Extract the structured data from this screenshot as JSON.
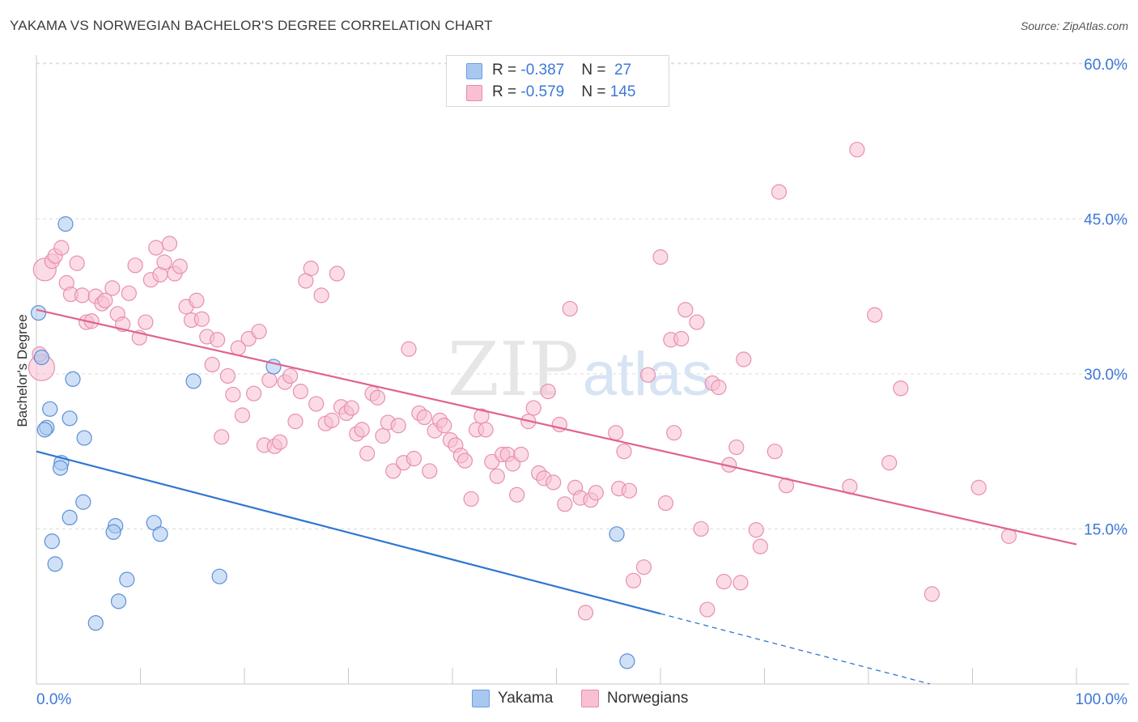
{
  "title": "YAKAMA VS NORWEGIAN BACHELOR'S DEGREE CORRELATION CHART",
  "source": "Source: ZipAtlas.com",
  "watermark": {
    "zip": "ZIP",
    "atlas": "atlas"
  },
  "legend": [
    {
      "r_label": "R = ",
      "r_value": "-0.387",
      "n_label": "N = ",
      "n_value": " 27",
      "color": "#a9c8f0",
      "stroke": "#6b9de0"
    },
    {
      "r_label": "R = ",
      "r_value": "-0.579",
      "n_label": "N = ",
      "n_value": "145",
      "color": "#f8c0d2",
      "stroke": "#e98bab"
    }
  ],
  "colors": {
    "yakama_fill": "#a9c8f0",
    "yakama_stroke": "#5b8fd8",
    "yakama_line": "#2f76d2",
    "norw_fill": "#f8c0d2",
    "norw_stroke": "#e88fae",
    "norw_line": "#e0638e",
    "tick_text": "#3c78d8"
  },
  "chart_data": {
    "type": "scatter",
    "title": "YAKAMA VS NORWEGIAN BACHELOR'S DEGREE CORRELATION CHART",
    "xlabel": "",
    "ylabel": "Bachelor's Degree",
    "xlim": [
      0,
      100
    ],
    "ylim": [
      0,
      63
    ],
    "x_tick_labels": [
      "0.0%",
      "100.0%"
    ],
    "y_ticks": [
      15,
      30,
      45,
      60
    ],
    "y_tick_labels": [
      "15.0%",
      "30.0%",
      "45.0%",
      "60.0%"
    ],
    "grid": true,
    "series": [
      {
        "name": "Yakama",
        "r": -0.387,
        "n": 27,
        "trend": {
          "x0": 0,
          "y0": 22.5,
          "x1": 60,
          "y1": 6.8,
          "dash_to_x": 100,
          "dash_to_y": -3.7
        },
        "points": [
          [
            0.2,
            35.9,
            9
          ],
          [
            0.5,
            31.6,
            9
          ],
          [
            2.8,
            44.5,
            9
          ],
          [
            1.3,
            26.6,
            9
          ],
          [
            1.0,
            24.8,
            9
          ],
          [
            0.8,
            24.6,
            9
          ],
          [
            3.5,
            29.5,
            9
          ],
          [
            3.2,
            25.7,
            9
          ],
          [
            4.6,
            23.8,
            9
          ],
          [
            2.4,
            21.4,
            9
          ],
          [
            2.3,
            20.9,
            9
          ],
          [
            4.5,
            17.6,
            9
          ],
          [
            3.2,
            16.1,
            9
          ],
          [
            7.6,
            15.3,
            9
          ],
          [
            7.4,
            14.7,
            9
          ],
          [
            11.3,
            15.6,
            9
          ],
          [
            11.9,
            14.5,
            9
          ],
          [
            1.5,
            13.8,
            9
          ],
          [
            1.8,
            11.6,
            9
          ],
          [
            8.7,
            10.1,
            9
          ],
          [
            17.6,
            10.4,
            9
          ],
          [
            7.9,
            8.0,
            9
          ],
          [
            5.7,
            5.9,
            9
          ],
          [
            15.1,
            29.3,
            9
          ],
          [
            22.8,
            30.7,
            9
          ],
          [
            55.8,
            14.5,
            9
          ],
          [
            56.8,
            2.2,
            9
          ]
        ]
      },
      {
        "name": "Norwegians",
        "r": -0.579,
        "n": 145,
        "trend": {
          "x0": 0,
          "y0": 36.2,
          "x1": 100,
          "y1": 13.5
        },
        "points": [
          [
            0.8,
            40.1,
            14
          ],
          [
            0.5,
            30.6,
            16
          ],
          [
            1.5,
            40.9,
            9
          ],
          [
            1.8,
            41.4,
            9
          ],
          [
            2.4,
            42.2,
            9
          ],
          [
            2.9,
            38.8,
            9
          ],
          [
            3.3,
            37.7,
            9
          ],
          [
            3.9,
            40.7,
            9
          ],
          [
            4.4,
            37.6,
            9
          ],
          [
            4.8,
            35.0,
            9
          ],
          [
            5.3,
            35.1,
            9
          ],
          [
            5.7,
            37.5,
            9
          ],
          [
            6.3,
            36.8,
            9
          ],
          [
            6.6,
            37.1,
            9
          ],
          [
            7.3,
            38.3,
            9
          ],
          [
            7.8,
            35.8,
            9
          ],
          [
            8.3,
            34.8,
            9
          ],
          [
            8.9,
            37.8,
            9
          ],
          [
            9.5,
            40.5,
            9
          ],
          [
            9.9,
            33.5,
            9
          ],
          [
            10.5,
            35.0,
            9
          ],
          [
            11.0,
            39.1,
            9
          ],
          [
            11.5,
            42.2,
            9
          ],
          [
            11.9,
            39.6,
            9
          ],
          [
            12.3,
            40.8,
            9
          ],
          [
            12.8,
            42.6,
            9
          ],
          [
            13.3,
            39.7,
            9
          ],
          [
            13.8,
            40.4,
            9
          ],
          [
            14.4,
            36.5,
            9
          ],
          [
            14.9,
            35.2,
            9
          ],
          [
            15.4,
            37.1,
            9
          ],
          [
            15.9,
            35.3,
            9
          ],
          [
            16.4,
            33.6,
            9
          ],
          [
            16.9,
            30.9,
            9
          ],
          [
            17.4,
            33.3,
            9
          ],
          [
            17.8,
            23.9,
            9
          ],
          [
            18.4,
            29.8,
            9
          ],
          [
            18.9,
            28.0,
            9
          ],
          [
            19.4,
            32.5,
            9
          ],
          [
            19.8,
            26.0,
            9
          ],
          [
            20.4,
            33.4,
            9
          ],
          [
            20.9,
            28.1,
            9
          ],
          [
            21.4,
            34.1,
            9
          ],
          [
            21.9,
            23.1,
            9
          ],
          [
            22.4,
            29.4,
            9
          ],
          [
            22.9,
            23.0,
            9
          ],
          [
            23.4,
            23.4,
            9
          ],
          [
            23.9,
            29.2,
            9
          ],
          [
            24.4,
            29.8,
            9
          ],
          [
            24.9,
            25.4,
            9
          ],
          [
            25.4,
            28.3,
            9
          ],
          [
            25.9,
            39.0,
            9
          ],
          [
            26.4,
            40.2,
            9
          ],
          [
            26.9,
            27.1,
            9
          ],
          [
            27.4,
            37.6,
            9
          ],
          [
            27.8,
            25.2,
            9
          ],
          [
            28.4,
            25.5,
            9
          ],
          [
            28.9,
            39.7,
            9
          ],
          [
            29.3,
            26.8,
            9
          ],
          [
            29.8,
            26.2,
            9
          ],
          [
            30.3,
            26.7,
            9
          ],
          [
            30.8,
            24.2,
            9
          ],
          [
            31.3,
            24.6,
            9
          ],
          [
            31.8,
            22.3,
            9
          ],
          [
            32.3,
            28.1,
            9
          ],
          [
            32.8,
            27.7,
            9
          ],
          [
            33.3,
            24.0,
            9
          ],
          [
            33.8,
            25.3,
            9
          ],
          [
            34.3,
            20.6,
            9
          ],
          [
            34.8,
            25.0,
            9
          ],
          [
            35.3,
            21.4,
            9
          ],
          [
            35.8,
            32.4,
            9
          ],
          [
            36.3,
            21.8,
            9
          ],
          [
            36.8,
            26.2,
            9
          ],
          [
            37.3,
            25.8,
            9
          ],
          [
            37.8,
            20.6,
            9
          ],
          [
            38.3,
            24.5,
            9
          ],
          [
            38.8,
            25.5,
            9
          ],
          [
            39.2,
            25.0,
            9
          ],
          [
            39.8,
            23.6,
            9
          ],
          [
            40.3,
            23.1,
            9
          ],
          [
            40.8,
            22.1,
            9
          ],
          [
            41.2,
            21.6,
            9
          ],
          [
            41.8,
            17.9,
            9
          ],
          [
            42.3,
            24.6,
            9
          ],
          [
            42.8,
            25.9,
            9
          ],
          [
            43.2,
            24.6,
            9
          ],
          [
            43.8,
            21.5,
            9
          ],
          [
            44.3,
            20.1,
            9
          ],
          [
            44.8,
            22.2,
            9
          ],
          [
            45.3,
            22.2,
            9
          ],
          [
            45.8,
            21.3,
            9
          ],
          [
            46.2,
            18.3,
            9
          ],
          [
            46.6,
            22.2,
            9
          ],
          [
            47.3,
            25.4,
            9
          ],
          [
            47.8,
            26.7,
            9
          ],
          [
            48.3,
            20.4,
            9
          ],
          [
            48.8,
            19.9,
            9
          ],
          [
            49.2,
            28.3,
            9
          ],
          [
            49.7,
            19.5,
            9
          ],
          [
            50.3,
            25.1,
            9
          ],
          [
            50.8,
            17.4,
            9
          ],
          [
            51.3,
            36.3,
            9
          ],
          [
            51.8,
            19.0,
            9
          ],
          [
            52.3,
            18.0,
            9
          ],
          [
            52.8,
            6.9,
            9
          ],
          [
            53.3,
            17.8,
            9
          ],
          [
            53.8,
            18.5,
            9
          ],
          [
            55.7,
            24.3,
            9
          ],
          [
            56.0,
            18.9,
            9
          ],
          [
            56.5,
            22.5,
            9
          ],
          [
            57.0,
            18.7,
            9
          ],
          [
            57.4,
            10.0,
            9
          ],
          [
            58.4,
            11.3,
            9
          ],
          [
            58.8,
            29.9,
            9
          ],
          [
            60.0,
            41.3,
            9
          ],
          [
            60.5,
            17.5,
            9
          ],
          [
            61.0,
            33.3,
            9
          ],
          [
            61.3,
            24.3,
            9
          ],
          [
            62.0,
            33.4,
            9
          ],
          [
            62.4,
            36.2,
            9
          ],
          [
            63.5,
            35.0,
            9
          ],
          [
            63.9,
            15.0,
            9
          ],
          [
            64.5,
            7.2,
            9
          ],
          [
            65.0,
            29.1,
            9
          ],
          [
            65.6,
            28.7,
            9
          ],
          [
            66.1,
            9.9,
            9
          ],
          [
            66.6,
            21.2,
            9
          ],
          [
            67.3,
            22.9,
            9
          ],
          [
            67.7,
            9.8,
            9
          ],
          [
            68.0,
            31.4,
            9
          ],
          [
            69.2,
            14.9,
            9
          ],
          [
            69.6,
            13.3,
            9
          ],
          [
            71.0,
            22.5,
            9
          ],
          [
            71.4,
            47.6,
            9
          ],
          [
            72.1,
            19.2,
            9
          ],
          [
            78.2,
            19.1,
            9
          ],
          [
            78.9,
            51.7,
            9
          ],
          [
            80.6,
            35.7,
            9
          ],
          [
            82.0,
            21.4,
            9
          ],
          [
            83.1,
            28.6,
            9
          ],
          [
            86.1,
            8.7,
            9
          ],
          [
            90.6,
            19.0,
            9
          ],
          [
            93.5,
            14.3,
            9
          ],
          [
            0.3,
            31.9,
            9
          ]
        ]
      }
    ]
  }
}
